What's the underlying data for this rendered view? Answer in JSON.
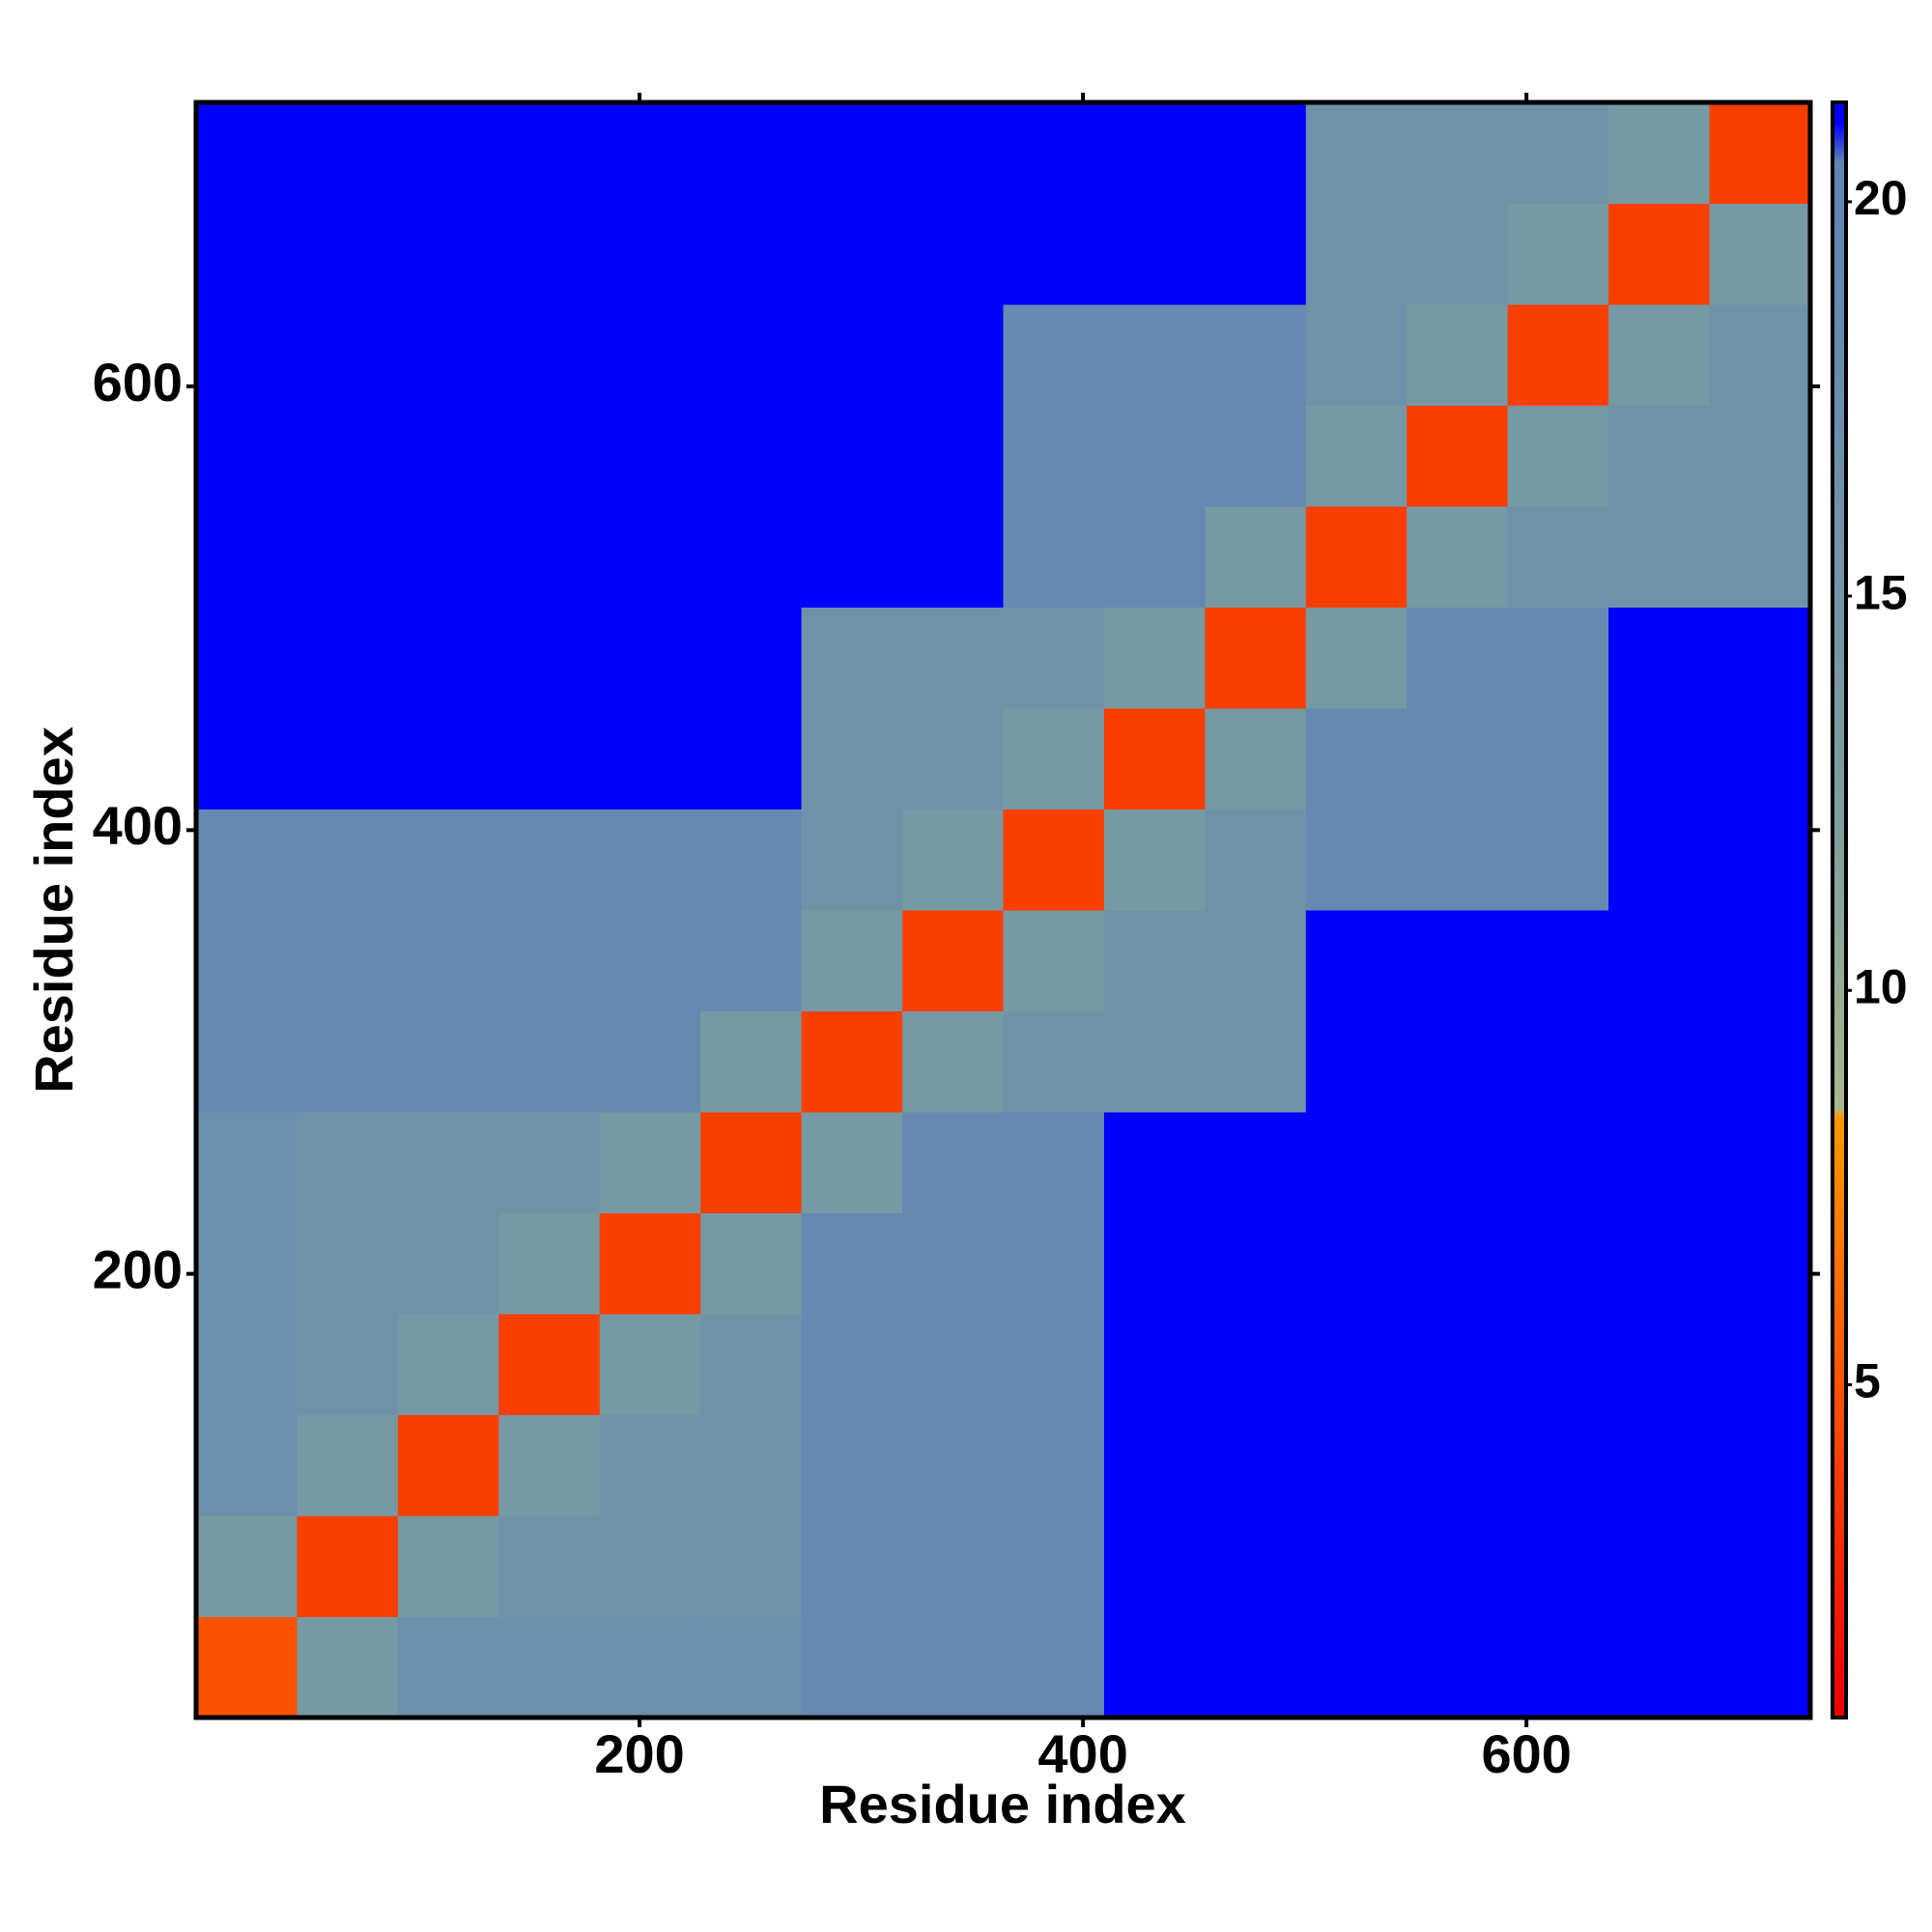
{
  "chart_data": {
    "type": "heatmap",
    "x_label": "Residue index",
    "y_label": "Residue index",
    "bins": [
      0,
      45.5,
      91,
      136.5,
      182,
      227.5,
      273,
      318.5,
      364,
      409.5,
      455,
      500.5,
      546,
      591.5,
      637,
      682.5,
      728
    ],
    "z": [
      [
        5,
        14,
        17,
        17,
        17,
        17,
        19,
        19,
        19,
        21,
        21,
        21,
        21,
        21,
        21,
        21
      ],
      [
        14,
        4,
        14,
        16,
        16,
        16,
        19,
        19,
        19,
        21,
        21,
        21,
        21,
        21,
        21,
        21
      ],
      [
        17,
        14,
        4,
        14,
        16,
        16,
        19,
        19,
        19,
        21,
        21,
        21,
        21,
        21,
        21,
        21
      ],
      [
        17,
        16,
        14,
        4,
        14,
        16,
        19,
        19,
        19,
        21,
        21,
        21,
        21,
        21,
        21,
        21
      ],
      [
        17,
        16,
        16,
        14,
        4,
        14,
        19,
        19,
        19,
        21,
        21,
        21,
        21,
        21,
        21,
        21
      ],
      [
        17,
        16,
        16,
        16,
        14,
        4,
        14,
        19,
        19,
        21,
        21,
        21,
        21,
        21,
        21,
        21
      ],
      [
        19,
        19,
        19,
        19,
        19,
        14,
        4,
        14,
        16,
        16,
        16,
        21,
        21,
        21,
        21,
        21
      ],
      [
        19,
        19,
        19,
        19,
        19,
        19,
        14,
        4,
        14,
        16,
        16,
        21,
        21,
        21,
        21,
        21
      ],
      [
        19,
        19,
        19,
        19,
        19,
        19,
        16,
        14,
        4,
        14,
        16,
        19,
        19,
        19,
        21,
        21
      ],
      [
        21,
        21,
        21,
        21,
        21,
        21,
        16,
        16,
        14,
        4,
        14,
        19,
        19,
        19,
        21,
        21
      ],
      [
        21,
        21,
        21,
        21,
        21,
        21,
        16,
        16,
        16,
        14,
        4,
        14,
        19,
        19,
        21,
        21
      ],
      [
        21,
        21,
        21,
        21,
        21,
        21,
        21,
        21,
        19,
        19,
        14,
        4,
        14,
        16,
        16,
        16
      ],
      [
        21,
        21,
        21,
        21,
        21,
        21,
        21,
        21,
        19,
        19,
        19,
        14,
        4,
        14,
        16,
        16
      ],
      [
        21,
        21,
        21,
        21,
        21,
        21,
        21,
        21,
        19,
        19,
        19,
        16,
        14,
        4,
        14,
        16
      ],
      [
        21,
        21,
        21,
        21,
        21,
        21,
        21,
        21,
        21,
        21,
        21,
        16,
        16,
        14,
        4,
        14
      ],
      [
        21,
        21,
        21,
        21,
        21,
        21,
        21,
        21,
        21,
        21,
        21,
        16,
        16,
        16,
        14,
        4
      ]
    ],
    "xlim": [
      0,
      728
    ],
    "ylim": [
      0,
      728
    ],
    "xticks": [
      200,
      400,
      600
    ],
    "yticks": [
      200,
      400,
      600
    ],
    "clim": [
      0.78,
      21.26
    ],
    "cticks": [
      5,
      10,
      15,
      20
    ],
    "colorscale": [
      [
        0.78,
        "#ee0000"
      ],
      [
        6,
        "#ff6600"
      ],
      [
        8.4,
        "#ff9900"
      ],
      [
        8.5,
        "#a8b88a"
      ],
      [
        12,
        "#7f9f9f"
      ],
      [
        20.5,
        "#5f84b5"
      ],
      [
        21,
        "#0000ff"
      ],
      [
        21.26,
        "#0000ff"
      ]
    ]
  }
}
